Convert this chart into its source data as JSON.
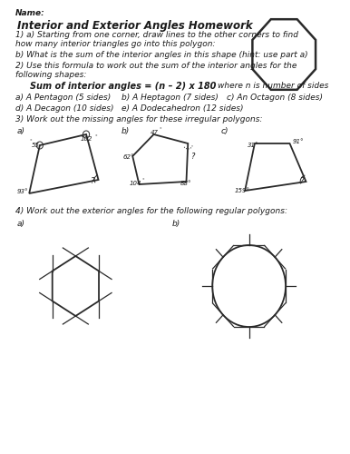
{
  "title": "Interior and Exterior Angles Homework",
  "name_label": "Name:",
  "q1a_1": "1) a) Starting from one corner, draw lines to the other corners to find",
  "q1a_2": "how many interior triangles go into this polygon:",
  "q1b": "b) What is the sum of the interior angles in this shape (hint: use part a)",
  "q2_1": "2) Use this formula to work out the sum of the interior angles for the",
  "q2_2": "following shapes:",
  "formula": "Sum of interior angles = (n – 2) x 180",
  "formula_note": "where n is number of sides",
  "q2a": "a) A Pentagon (5 sides)",
  "q2b": "b) A Heptagon (7 sides)",
  "q2c": "c) An Octagon (8 sides)",
  "q2d": "d) A Decagon (10 sides)",
  "q2e": "e) A Dodecahedron (12 sides)",
  "q3": "3) Work out the missing angles for these irregular polygons:",
  "q4": "4) Work out the exterior angles for the following regular polygons:",
  "bg_color": "#ffffff",
  "text_color": "#1a1a1a",
  "line_color": "#2a2a2a",
  "font_size_title": 8.5,
  "font_size_body": 6.5,
  "font_size_small": 5.5,
  "font_size_angle": 5.0
}
